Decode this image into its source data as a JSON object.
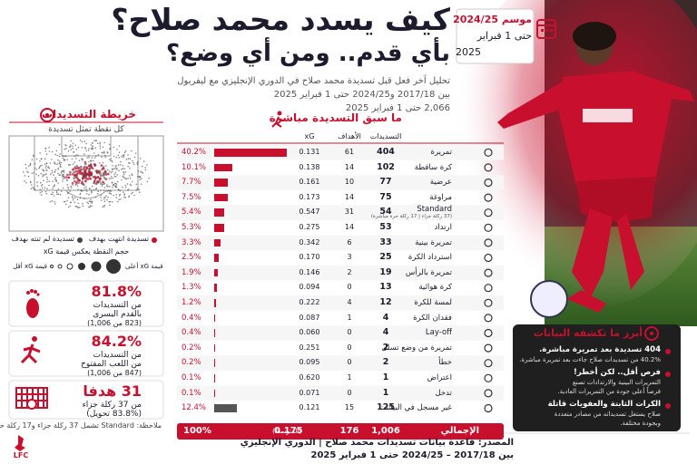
{
  "header": {
    "title": "كيف يسدد محمد صلاح؟",
    "title2": "بأي قدم.. ومن أي وضع؟",
    "subtitle": [
      "تحليل آخر فعل قبل تسديدة محمد صلاح في الدوري الإنجليزي مع ليفربول",
      "بين 2017/18 و2024/25 حتى 1 فبراير 2025",
      "2,066 حتى 1 فبراير 2025"
    ],
    "season": [
      "موسم 2024/25",
      "حتى 1 فبراير",
      "2025"
    ]
  },
  "shot_map": {
    "title": "خريطة التسديدات",
    "caption": "كل نقطة تمثل تسديدة",
    "legend_goal": "تسديدة انتهت بهدف",
    "legend_miss": "تسديدة لم تنته بهدف",
    "size_note": "حجم النقطة يعكس قيمة xG",
    "size_low": "قيمة xG أقل",
    "size_high": "قيمة xG أعلى"
  },
  "stats": [
    {
      "value": "81.8%",
      "line1": "من التسديدات",
      "line2": "بالقدم اليسرى",
      "line3": "(823 من 1,006)"
    },
    {
      "value": "84.2%",
      "line1": "من التسديدات",
      "line2": "من اللعب المفتوح",
      "line3": "(847 من 1,006)"
    },
    {
      "value": "31 هدفا",
      "line1": "من 37 ركلة جزاء",
      "line2": "(83.8% تحويل)"
    }
  ],
  "note": "ملاحظة: Standard تشمل 37 ركلة جزاء و17 ركلة حرة مباشرة",
  "table": {
    "title": "ما سبق التسديدة مباشرة",
    "columns": [
      "التسديدات",
      "الأهداف",
      "xG"
    ],
    "rows": [
      {
        "name": "تمريرة",
        "shots": "404",
        "goals": "61",
        "xg": "0.131",
        "pct": "40.2%"
      },
      {
        "name": "كرة ساقطة",
        "shots": "102",
        "goals": "14",
        "xg": "0.138",
        "pct": "10.1%"
      },
      {
        "name": "عرضية",
        "shots": "77",
        "goals": "10",
        "xg": "0.161",
        "pct": "7.7%"
      },
      {
        "name": "مراوغة",
        "shots": "75",
        "goals": "14",
        "xg": "0.173",
        "pct": "7.5%"
      },
      {
        "name": "Standard",
        "sub": "(37 ركلة جزاء | 17 ركلة حرة مباشرة)",
        "shots": "54",
        "goals": "31",
        "xg": "0.547",
        "pct": "5.4%"
      },
      {
        "name": "ارتداد",
        "shots": "53",
        "goals": "14",
        "xg": "0.275",
        "pct": "5.3%"
      },
      {
        "name": "تمريرة بينية",
        "shots": "33",
        "goals": "6",
        "xg": "0.342",
        "pct": "3.3%"
      },
      {
        "name": "استرداد الكرة",
        "shots": "25",
        "goals": "3",
        "xg": "0.170",
        "pct": "2.5%"
      },
      {
        "name": "تمريرة بالرأس",
        "shots": "19",
        "goals": "2",
        "xg": "0.146",
        "pct": "1.9%"
      },
      {
        "name": "كرة هوائية",
        "shots": "13",
        "goals": "0",
        "xg": "0.094",
        "pct": "1.3%"
      },
      {
        "name": "لمسة للكرة",
        "shots": "12",
        "goals": "4",
        "xg": "0.222",
        "pct": "1.2%"
      },
      {
        "name": "فقدان الكرة",
        "shots": "4",
        "goals": "1",
        "xg": "0.087",
        "pct": "0.4%"
      },
      {
        "name": "Lay-off",
        "shots": "4",
        "goals": "0",
        "xg": "0.060",
        "pct": "0.4%"
      },
      {
        "name": "تمريرة من وضع تسلل",
        "shots": "2",
        "goals": "0",
        "xg": "0.251",
        "pct": "0.2%"
      },
      {
        "name": "خطأ",
        "shots": "2",
        "goals": "0",
        "xg": "0.095",
        "pct": "0.2%"
      },
      {
        "name": "اعتراض",
        "shots": "1",
        "goals": "1",
        "xg": "0.620",
        "pct": "0.1%"
      },
      {
        "name": "تدخل",
        "shots": "1",
        "goals": "0",
        "xg": "0.071",
        "pct": "0.1%"
      },
      {
        "name": "غير مسجل في البيانات",
        "shots": "125",
        "goals": "15",
        "xg": "0.121",
        "pct": "12.4%"
      }
    ],
    "total": {
      "name": "الإجمالي",
      "shots": "1,006",
      "goals": "176",
      "xg": "0.175",
      "xg_note": "(المتوسط)",
      "pct": "100%"
    }
  },
  "insights": {
    "title": "أبرز ما تكشفه البيانات",
    "items": [
      {
        "head": "404 تسديدة بعد تمريرة مباشرة.",
        "body": [
          "40.2% من تسديدات صلاح جاءت بعد تمريرة مباشرة."
        ]
      },
      {
        "head": "فرص أقل.. لكن أخطر!",
        "body": [
          "التمريرات البينية والارتدادات تصنع",
          "فرصاً أعلى جودة من التمريرات العادية."
        ]
      },
      {
        "head": "الكرات الثابتة والعفويات قاتلة",
        "body": [
          "صلاح يستغل تسديداته من مصادر متعددة",
          "وبجودة مختلفة."
        ]
      }
    ]
  },
  "footer": {
    "source": "المصدر: قاعدة بيانات تسديدات محمد صلاح | الدوري الإنجليزي",
    "period": "بين 2017/18 – 2024/25 حتى 1 فبراير 2025",
    "logo": "LFC"
  }
}
